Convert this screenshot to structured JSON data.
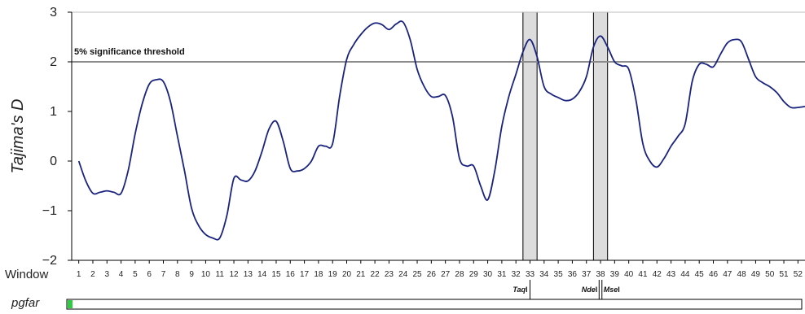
{
  "chart_data": {
    "type": "line",
    "ylabel": "Tajima's D",
    "xlabel": "Window",
    "ylim": [
      -2,
      3
    ],
    "yticks": [
      {
        "value": 3,
        "label": "3"
      },
      {
        "value": 2,
        "label": "2"
      },
      {
        "value": 1,
        "label": "1"
      },
      {
        "value": 0,
        "label": "0"
      },
      {
        "value": -1,
        "label": "−1"
      },
      {
        "value": -2,
        "label": "−2"
      }
    ],
    "x_categories": [
      "1",
      "2",
      "3",
      "4",
      "5",
      "6",
      "7",
      "8",
      "9",
      "10",
      "11",
      "12",
      "13",
      "14",
      "15",
      "16",
      "17",
      "18",
      "19",
      "20",
      "21",
      "22",
      "23",
      "24",
      "25",
      "26",
      "27",
      "28",
      "29",
      "30",
      "31",
      "32",
      "33",
      "34",
      "35",
      "36",
      "37",
      "38",
      "39",
      "40",
      "41",
      "42",
      "43",
      "44",
      "45",
      "46",
      "47",
      "48",
      "49",
      "50",
      "51",
      "52"
    ],
    "x_values": [
      1,
      2,
      3,
      4,
      5,
      6,
      7,
      8,
      9,
      10,
      11,
      12,
      13,
      14,
      15,
      16,
      17,
      18,
      19,
      20,
      21,
      22,
      23,
      24,
      25,
      26,
      27,
      28,
      29,
      30,
      31,
      32,
      33,
      34,
      35,
      36,
      37,
      38,
      39,
      40,
      41,
      42,
      43,
      44,
      45,
      46,
      47,
      48,
      49,
      50,
      51,
      52
    ],
    "series": [
      {
        "color": "#1a237e",
        "points": [
          [
            1.0,
            0.0
          ],
          [
            1.5,
            -0.4
          ],
          [
            2.0,
            -0.65
          ],
          [
            2.5,
            -0.63
          ],
          [
            3.0,
            -0.6
          ],
          [
            3.5,
            -0.63
          ],
          [
            4.0,
            -0.65
          ],
          [
            4.5,
            -0.2
          ],
          [
            5.0,
            0.55
          ],
          [
            5.5,
            1.15
          ],
          [
            6.0,
            1.55
          ],
          [
            6.5,
            1.64
          ],
          [
            7.0,
            1.6
          ],
          [
            7.5,
            1.2
          ],
          [
            8.0,
            0.5
          ],
          [
            8.5,
            -0.2
          ],
          [
            9.0,
            -0.95
          ],
          [
            9.5,
            -1.3
          ],
          [
            10.0,
            -1.48
          ],
          [
            10.5,
            -1.55
          ],
          [
            11.0,
            -1.55
          ],
          [
            11.5,
            -1.1
          ],
          [
            12.0,
            -0.35
          ],
          [
            12.5,
            -0.38
          ],
          [
            13.0,
            -0.4
          ],
          [
            13.5,
            -0.2
          ],
          [
            14.0,
            0.2
          ],
          [
            14.5,
            0.65
          ],
          [
            15.0,
            0.8
          ],
          [
            15.5,
            0.4
          ],
          [
            16.0,
            -0.15
          ],
          [
            16.5,
            -0.2
          ],
          [
            17.0,
            -0.15
          ],
          [
            17.5,
            0.0
          ],
          [
            18.0,
            0.3
          ],
          [
            18.5,
            0.3
          ],
          [
            19.0,
            0.35
          ],
          [
            19.5,
            1.3
          ],
          [
            20.0,
            2.05
          ],
          [
            20.5,
            2.35
          ],
          [
            21.0,
            2.55
          ],
          [
            21.5,
            2.7
          ],
          [
            22.0,
            2.78
          ],
          [
            22.5,
            2.75
          ],
          [
            23.0,
            2.65
          ],
          [
            23.5,
            2.76
          ],
          [
            24.0,
            2.8
          ],
          [
            24.5,
            2.45
          ],
          [
            25.0,
            1.85
          ],
          [
            25.5,
            1.5
          ],
          [
            26.0,
            1.3
          ],
          [
            26.5,
            1.3
          ],
          [
            27.0,
            1.32
          ],
          [
            27.5,
            0.9
          ],
          [
            28.0,
            0.05
          ],
          [
            28.5,
            -0.1
          ],
          [
            29.0,
            -0.1
          ],
          [
            29.5,
            -0.5
          ],
          [
            30.0,
            -0.78
          ],
          [
            30.5,
            -0.2
          ],
          [
            31.0,
            0.7
          ],
          [
            31.5,
            1.3
          ],
          [
            32.0,
            1.75
          ],
          [
            32.5,
            2.2
          ],
          [
            33.0,
            2.45
          ],
          [
            33.5,
            2.1
          ],
          [
            34.0,
            1.5
          ],
          [
            34.5,
            1.35
          ],
          [
            35.0,
            1.28
          ],
          [
            35.5,
            1.22
          ],
          [
            36.0,
            1.25
          ],
          [
            36.5,
            1.4
          ],
          [
            37.0,
            1.7
          ],
          [
            37.5,
            2.3
          ],
          [
            38.0,
            2.52
          ],
          [
            38.5,
            2.3
          ],
          [
            39.0,
            2.0
          ],
          [
            39.5,
            1.92
          ],
          [
            40.0,
            1.85
          ],
          [
            40.5,
            1.25
          ],
          [
            41.0,
            0.35
          ],
          [
            41.5,
            0.0
          ],
          [
            42.0,
            -0.12
          ],
          [
            42.5,
            0.05
          ],
          [
            43.0,
            0.3
          ],
          [
            43.5,
            0.5
          ],
          [
            44.0,
            0.75
          ],
          [
            44.5,
            1.6
          ],
          [
            45.0,
            1.95
          ],
          [
            45.5,
            1.95
          ],
          [
            46.0,
            1.9
          ],
          [
            46.5,
            2.15
          ],
          [
            47.0,
            2.38
          ],
          [
            47.5,
            2.45
          ],
          [
            48.0,
            2.4
          ],
          [
            48.5,
            2.05
          ],
          [
            49.0,
            1.7
          ],
          [
            49.5,
            1.58
          ],
          [
            50.0,
            1.5
          ],
          [
            50.5,
            1.38
          ],
          [
            51.0,
            1.2
          ],
          [
            51.5,
            1.08
          ],
          [
            52.0,
            1.08
          ],
          [
            52.5,
            1.1
          ]
        ]
      }
    ],
    "threshold": {
      "value": 2,
      "label": "5% significance threshold",
      "color": "#8c8c8c"
    },
    "shaded_regions": [
      {
        "x_start": 32.5,
        "x_end": 33.5,
        "fill": "#dcdcdc"
      },
      {
        "x_start": 37.5,
        "x_end": 38.5,
        "fill": "#dcdcdc"
      }
    ],
    "restriction_sites": [
      {
        "label_italic": "Taq",
        "label_suffix": "I",
        "x": 33.0
      },
      {
        "label_italic": "Nde",
        "label_suffix": "I",
        "x": 37.9
      },
      {
        "label_italic": "Mse",
        "label_suffix": "I",
        "x": 38.1
      }
    ],
    "gene_track": {
      "label": "pgfar",
      "marker_color": "#2ecc40"
    }
  }
}
